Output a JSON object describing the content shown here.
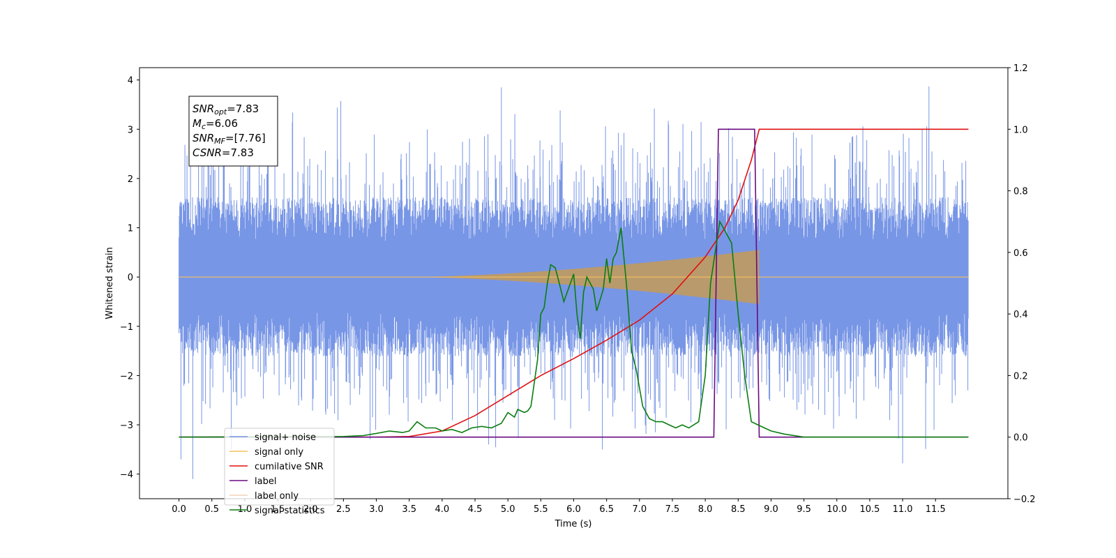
{
  "chart_data": {
    "type": "line",
    "title": "",
    "xlabel": "Time (s)",
    "ylabel": "Whitened strain",
    "xlim": [
      -0.6,
      12.6
    ],
    "ylim": [
      -4.5,
      4.25
    ],
    "y2lim": [
      -0.2,
      1.2
    ],
    "grid": false,
    "legend_position": "lower-left",
    "x_ticks": [
      0.0,
      0.5,
      1.0,
      1.5,
      2.0,
      2.5,
      3.0,
      3.5,
      4.0,
      4.5,
      5.0,
      5.5,
      6.0,
      6.5,
      7.0,
      7.5,
      8.0,
      8.5,
      9.0,
      9.5,
      10.0,
      10.5,
      11.0,
      11.5
    ],
    "x_tick_labels": [
      "0.0",
      "0.5",
      "1.0",
      "1.5",
      "2.0",
      "2.5",
      "3.0",
      "3.5",
      "4.0",
      "4.5",
      "5.0",
      "5.5",
      "6.0",
      "6.5",
      "7.0",
      "7.5",
      "8.0",
      "8.5",
      "9.0",
      "9.5",
      "10.0",
      "10.5",
      "11.0",
      "11.5"
    ],
    "y_ticks": [
      -4,
      -3,
      -2,
      -1,
      0,
      1,
      2,
      3,
      4
    ],
    "y_tick_labels": [
      "−4",
      "−3",
      "−2",
      "−1",
      "0",
      "1",
      "2",
      "3",
      "4"
    ],
    "y2_ticks": [
      -0.2,
      0.0,
      0.2,
      0.4,
      0.6,
      0.8,
      1.0,
      1.2
    ],
    "y2_tick_labels": [
      "−0.2",
      "0.0",
      "0.2",
      "0.4",
      "0.6",
      "0.8",
      "1.0",
      "1.2"
    ],
    "annotation": {
      "lines": [
        {
          "main": "SNR",
          "sub": "opt",
          "rest": "=7.83"
        },
        {
          "main": "M",
          "sub": "c",
          "rest": "=6.06"
        },
        {
          "main": "SNR",
          "sub": "MF",
          "rest": "=[7.76]"
        },
        {
          "main": "CSNR",
          "sub": "",
          "rest": "=7.83"
        }
      ]
    },
    "series": [
      {
        "name": "signal+ noise",
        "color": "#7896e6",
        "axis": "left",
        "kind": "noise",
        "x_range": [
          0.0,
          12.0
        ],
        "typical_range": [
          -1.8,
          1.8
        ],
        "extremes": [
          -4.1,
          3.87
        ]
      },
      {
        "name": "signal only",
        "color": "#f5c060",
        "axis": "left",
        "kind": "chirp",
        "x_range": [
          0.0,
          12.0
        ],
        "chirp_start": 3.5,
        "merger": 8.82,
        "peak_amplitude": 0.55
      },
      {
        "name": "cumilative SNR",
        "color": "#e01010",
        "axis": "right",
        "x": [
          0.0,
          3.0,
          3.5,
          4.0,
          4.5,
          5.0,
          5.5,
          6.0,
          6.5,
          7.0,
          7.5,
          8.0,
          8.3,
          8.5,
          8.7,
          8.82,
          12.0
        ],
        "y": [
          0.0,
          0.0,
          0.002,
          0.02,
          0.07,
          0.135,
          0.2,
          0.255,
          0.315,
          0.38,
          0.465,
          0.585,
          0.68,
          0.77,
          0.9,
          1.0,
          1.0
        ]
      },
      {
        "name": "label",
        "color": "#6a0a80",
        "axis": "right",
        "x": [
          0.0,
          8.13,
          8.2,
          8.75,
          8.82,
          12.0
        ],
        "y": [
          0.0,
          0.0,
          1.0,
          1.0,
          0.0,
          0.0
        ]
      },
      {
        "name": "label only",
        "color": "#f2d4b8",
        "axis": "right",
        "hidden_in_plot": true
      },
      {
        "name": "signal statistics",
        "color": "#0a7d10",
        "axis": "right",
        "x": [
          0.0,
          2.5,
          2.8,
          3.0,
          3.2,
          3.4,
          3.5,
          3.62,
          3.75,
          3.9,
          4.0,
          4.15,
          4.3,
          4.45,
          4.6,
          4.75,
          4.9,
          5.0,
          5.1,
          5.15,
          5.25,
          5.3,
          5.35,
          5.45,
          5.5,
          5.55,
          5.6,
          5.65,
          5.72,
          5.78,
          5.85,
          5.95,
          6.0,
          6.05,
          6.1,
          6.15,
          6.2,
          6.3,
          6.35,
          6.45,
          6.5,
          6.55,
          6.6,
          6.65,
          6.72,
          6.8,
          6.88,
          6.95,
          7.05,
          7.15,
          7.25,
          7.35,
          7.45,
          7.55,
          7.65,
          7.75,
          7.9,
          8.0,
          8.08,
          8.15,
          8.22,
          8.3,
          8.4,
          8.5,
          8.6,
          8.7,
          8.8,
          8.9,
          9.0,
          9.2,
          9.5,
          12.0
        ],
        "y": [
          0.0,
          0.002,
          0.005,
          0.012,
          0.02,
          0.015,
          0.02,
          0.05,
          0.03,
          0.03,
          0.02,
          0.025,
          0.015,
          0.03,
          0.035,
          0.03,
          0.045,
          0.08,
          0.065,
          0.09,
          0.08,
          0.085,
          0.1,
          0.25,
          0.4,
          0.42,
          0.5,
          0.56,
          0.55,
          0.5,
          0.44,
          0.5,
          0.53,
          0.4,
          0.32,
          0.47,
          0.52,
          0.48,
          0.41,
          0.48,
          0.58,
          0.5,
          0.58,
          0.6,
          0.68,
          0.5,
          0.28,
          0.22,
          0.1,
          0.06,
          0.05,
          0.05,
          0.04,
          0.03,
          0.04,
          0.03,
          0.05,
          0.2,
          0.5,
          0.6,
          0.7,
          0.67,
          0.63,
          0.4,
          0.2,
          0.05,
          0.04,
          0.03,
          0.02,
          0.01,
          0.0,
          0.0
        ]
      }
    ]
  }
}
